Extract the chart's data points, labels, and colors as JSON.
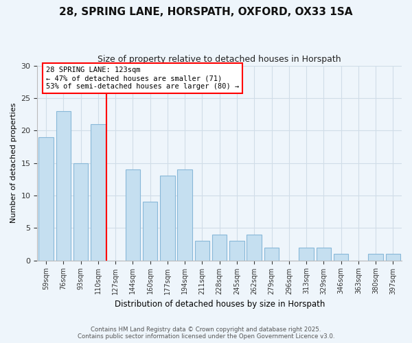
{
  "title_line1": "28, SPRING LANE, HORSPATH, OXFORD, OX33 1SA",
  "title_line2": "Size of property relative to detached houses in Horspath",
  "xlabel": "Distribution of detached houses by size in Horspath",
  "ylabel": "Number of detached properties",
  "bar_labels": [
    "59sqm",
    "76sqm",
    "93sqm",
    "110sqm",
    "127sqm",
    "144sqm",
    "160sqm",
    "177sqm",
    "194sqm",
    "211sqm",
    "228sqm",
    "245sqm",
    "262sqm",
    "279sqm",
    "296sqm",
    "313sqm",
    "329sqm",
    "346sqm",
    "363sqm",
    "380sqm",
    "397sqm"
  ],
  "bar_values": [
    19,
    23,
    15,
    21,
    0,
    14,
    9,
    13,
    14,
    3,
    4,
    3,
    4,
    2,
    0,
    2,
    2,
    1,
    0,
    1,
    1
  ],
  "bar_color": "#c5dff0",
  "bar_edge_color": "#88b8d8",
  "reference_line_index": 3.5,
  "reference_line_color": "red",
  "annotation_text": "28 SPRING LANE: 123sqm\n← 47% of detached houses are smaller (71)\n53% of semi-detached houses are larger (80) →",
  "annotation_box_color": "white",
  "annotation_box_edge_color": "red",
  "ylim": [
    0,
    30
  ],
  "yticks": [
    0,
    5,
    10,
    15,
    20,
    25,
    30
  ],
  "footer_line1": "Contains HM Land Registry data © Crown copyright and database right 2025.",
  "footer_line2": "Contains public sector information licensed under the Open Government Licence v3.0.",
  "background_color": "#eef5fb",
  "grid_color": "#d0dde8"
}
